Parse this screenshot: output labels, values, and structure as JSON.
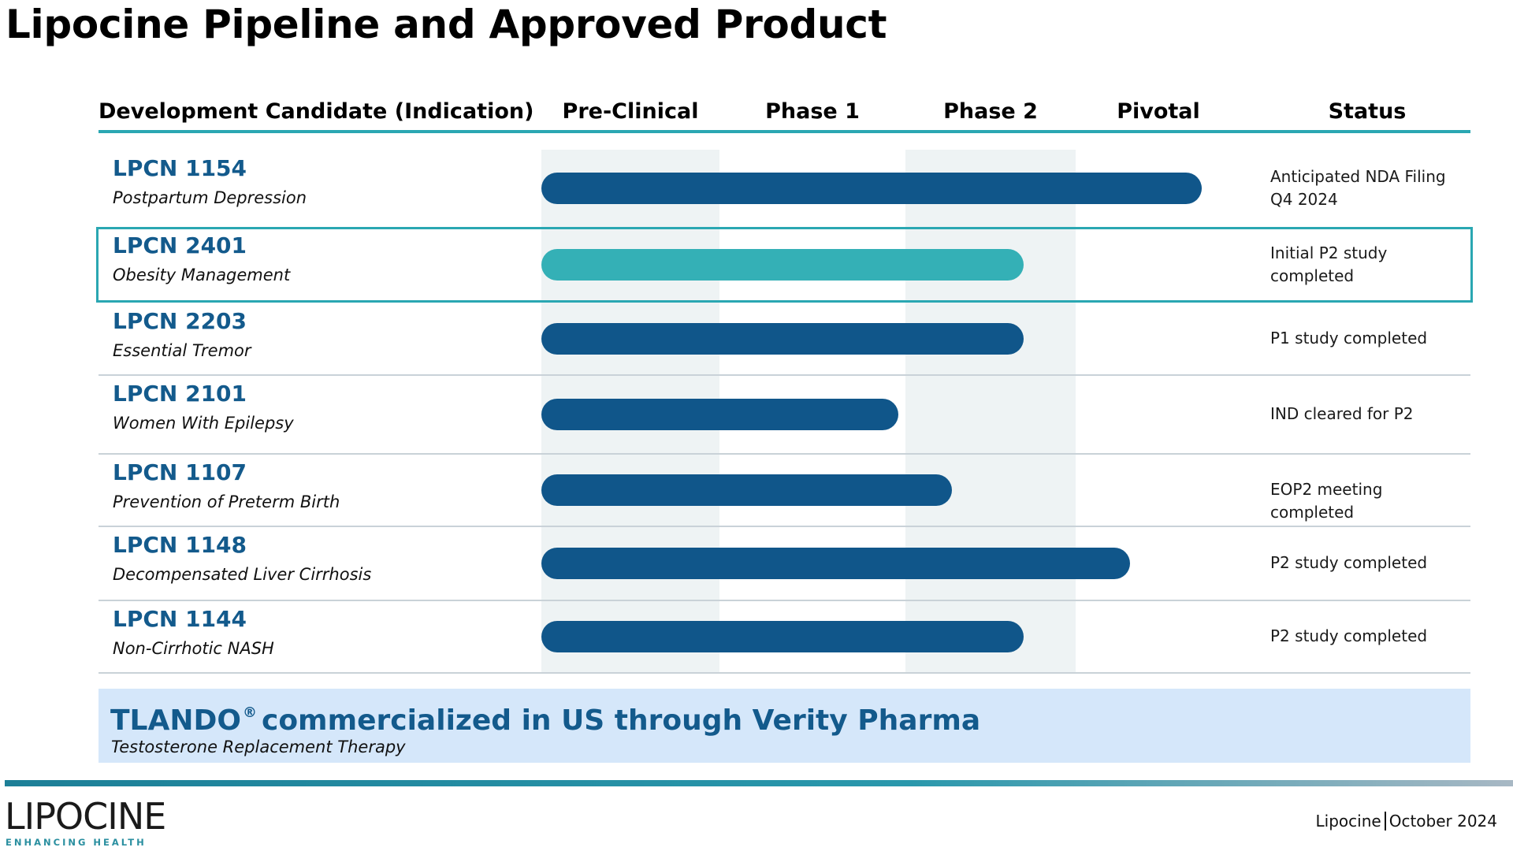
{
  "slide": {
    "title": "Lipocine Pipeline and Approved Product"
  },
  "columns": {
    "candidate": "Development Candidate (Indication)",
    "phases": [
      "Pre-Clinical",
      "Phase 1",
      "Phase 2",
      "Pivotal"
    ],
    "status": "Status"
  },
  "chart_data": {
    "type": "bar",
    "orientation": "horizontal",
    "title": "Lipocine Pipeline and Approved Product",
    "stages": [
      "Pre-Clinical",
      "Phase 1",
      "Phase 2",
      "Pivotal"
    ],
    "progress_unit": "stages reached (0 = start of Pre-Clinical, 4 = end of Pivotal)",
    "rows": [
      {
        "name": "LPCN 1154",
        "indication": "Postpartum Depression",
        "progress": 3.7,
        "status": "Anticipated NDA Filing Q4 2024",
        "highlighted": false
      },
      {
        "name": "LPCN 2401",
        "indication": "Obesity Management",
        "progress": 2.7,
        "status": "Initial P2 study completed",
        "highlighted": true
      },
      {
        "name": "LPCN 2203",
        "indication": "Essential Tremor",
        "progress": 2.7,
        "status": "P1 study completed",
        "highlighted": false
      },
      {
        "name": "LPCN 2101",
        "indication": "Women With Epilepsy",
        "progress": 2.0,
        "status": "IND cleared for P2",
        "highlighted": false
      },
      {
        "name": "LPCN 1107",
        "indication": "Prevention of Preterm Birth",
        "progress": 2.3,
        "status": "EOP2 meeting completed",
        "highlighted": false
      },
      {
        "name": "LPCN 1148",
        "indication": "Decompensated Liver Cirrhosis",
        "progress": 3.3,
        "status": "P2 study completed",
        "highlighted": false
      },
      {
        "name": "LPCN 1144",
        "indication": "Non-Cirrhotic NASH",
        "progress": 2.7,
        "status": "P2 study completed",
        "highlighted": false
      }
    ]
  },
  "colors": {
    "bar": "#10568a",
    "bar_highlight": "#34b0b6",
    "accent": "#2aa7b2",
    "candidate_text": "#135a8c",
    "banner_bg": "#d5e7fa"
  },
  "banner": {
    "product": "TLANDO",
    "registered_mark": "®",
    "headline": "commercialized in US through Verity Pharma",
    "subtitle": "Testosterone Replacement Therapy"
  },
  "footer": {
    "logo_text": "LIPOCINE",
    "logo_tagline": "ENHANCING HEALTH",
    "company": "Lipocine",
    "date": "October 2024"
  }
}
